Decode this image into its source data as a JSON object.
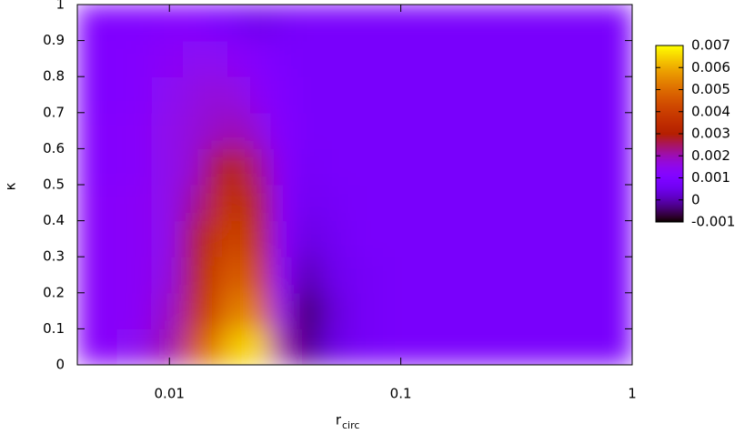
{
  "chart_data": {
    "type": "heatmap",
    "xlabel": "r",
    "xlabel_subscript": "circ",
    "ylabel": "κ",
    "x_log": true,
    "xlim": [
      0.004,
      1
    ],
    "xticks": [
      0.01,
      0.1,
      1
    ],
    "ylim": [
      0,
      1
    ],
    "yticks": [
      0,
      0.1,
      0.2,
      0.3,
      0.4,
      0.5,
      0.6,
      0.7,
      0.8,
      0.9,
      1
    ],
    "zlim": [
      -0.001,
      0.007
    ],
    "zticks": [
      -0.001,
      0,
      0.001,
      0.002,
      0.003,
      0.004,
      0.005,
      0.006,
      0.007
    ],
    "x": [
      0.005,
      0.007,
      0.01,
      0.013,
      0.016,
      0.02,
      0.025,
      0.03,
      0.04,
      0.05,
      0.07,
      0.1,
      0.2,
      0.5
    ],
    "y": [
      0.05,
      0.15,
      0.25,
      0.35,
      0.45,
      0.55,
      0.65,
      0.75,
      0.85,
      0.95
    ],
    "z": [
      [
        0.0012,
        0.0014,
        0.002,
        0.0045,
        0.0055,
        0.0065,
        0.0065,
        0.002,
        -0.0003,
        0.0004,
        0.0007,
        0.0008,
        0.0008,
        0.0008
      ],
      [
        0.0012,
        0.0013,
        0.0018,
        0.0035,
        0.0045,
        0.0055,
        0.005,
        0.0015,
        -0.0005,
        0.0003,
        0.0007,
        0.0008,
        0.0008,
        0.0008
      ],
      [
        0.0012,
        0.0013,
        0.0016,
        0.003,
        0.0042,
        0.0048,
        0.004,
        0.0012,
        0,
        0.0005,
        0.0007,
        0.0008,
        0.0008,
        0.0008
      ],
      [
        0.0012,
        0.0013,
        0.0015,
        0.0028,
        0.0038,
        0.0042,
        0.0032,
        0.0012,
        0.0004,
        0.0006,
        0.0008,
        0.0008,
        0.0008,
        0.0008
      ],
      [
        0.0012,
        0.0013,
        0.0015,
        0.0022,
        0.0034,
        0.0037,
        0.0028,
        0.0012,
        0.0006,
        0.0007,
        0.0008,
        0.0008,
        0.0008,
        0.0008
      ],
      [
        0.0011,
        0.0012,
        0.0015,
        0.0018,
        0.0028,
        0.0032,
        0.0022,
        0.0012,
        0.0007,
        0.0008,
        0.0008,
        0.0008,
        0.0008,
        0.0008
      ],
      [
        0.0011,
        0.0012,
        0.0015,
        0.0017,
        0.0019,
        0.002,
        0.0016,
        0.0011,
        0.0008,
        0.0008,
        0.0008,
        0.0008,
        0.0008,
        0.0008
      ],
      [
        0.001,
        0.0011,
        0.0014,
        0.0016,
        0.0017,
        0.0016,
        0.0013,
        0.001,
        0.0008,
        0.0008,
        0.0008,
        0.0008,
        0.0008,
        0.0008
      ],
      [
        0.001,
        0.0011,
        0.0013,
        0.0014,
        0.0014,
        0.0013,
        0.0011,
        0.0009,
        0.0008,
        0.0008,
        0.0008,
        0.0008,
        0.0008,
        0.0008
      ],
      [
        0.001,
        0.001,
        0.0011,
        0.0011,
        0.0009,
        0.0007,
        0.0005,
        0.0007,
        0.0008,
        0.0008,
        0.0008,
        0.0008,
        0.0008,
        0.0008
      ]
    ]
  }
}
